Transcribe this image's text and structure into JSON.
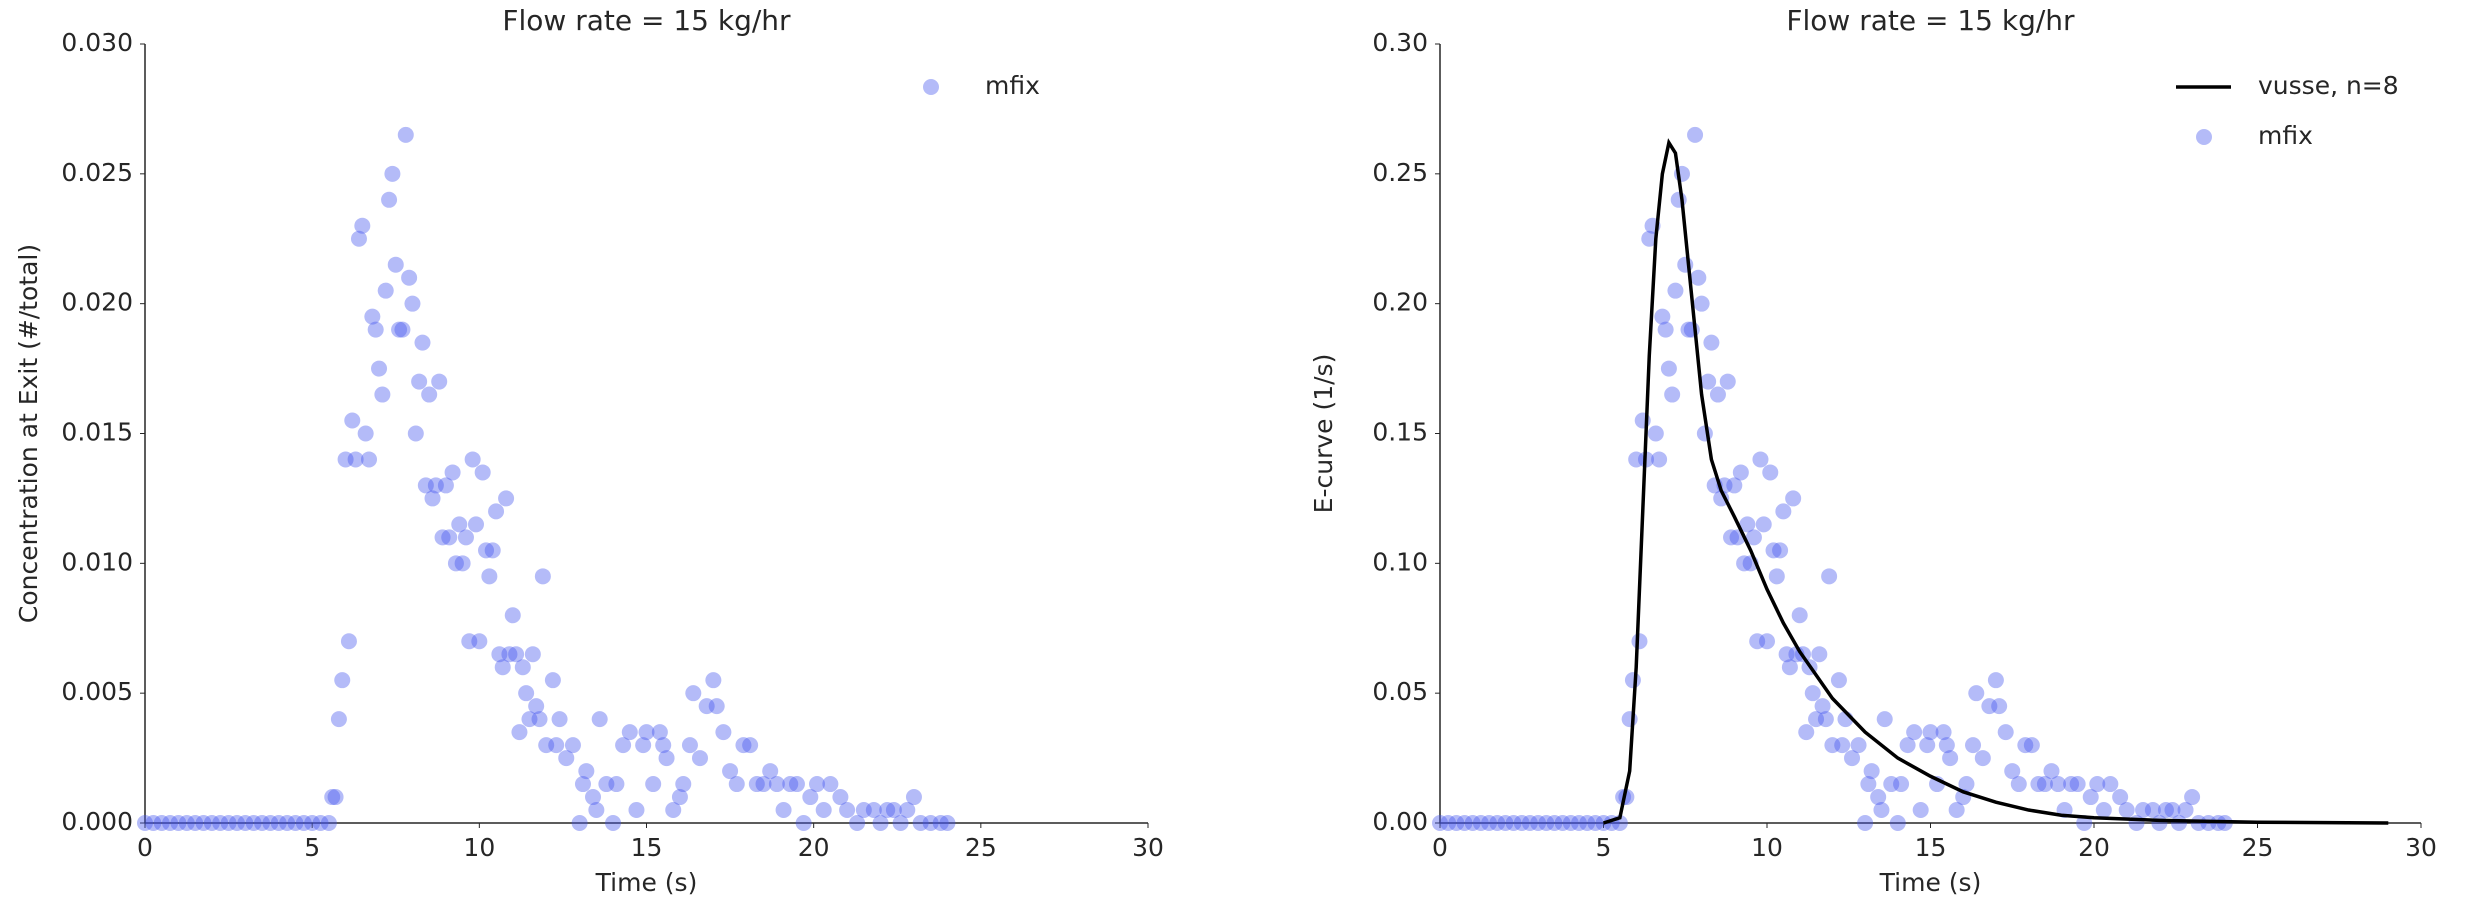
{
  "chart_data": [
    {
      "type": "scatter",
      "title": "Flow rate = 15 kg/hr",
      "x_label": "Time (s)",
      "y_label": "Concentration at Exit (#/total)",
      "xlim": [
        0,
        30
      ],
      "xticks": [
        0,
        5,
        10,
        15,
        20,
        25,
        30
      ],
      "ylim": [
        0,
        0.03
      ],
      "yticks": [
        {
          "value": 0,
          "label": "0.000"
        },
        {
          "value": 0.005,
          "label": "0.005"
        },
        {
          "value": 0.01,
          "label": "0.010"
        },
        {
          "value": 0.015,
          "label": "0.015"
        },
        {
          "value": 0.02,
          "label": "0.020"
        },
        {
          "value": 0.025,
          "label": "0.025"
        },
        {
          "value": 0.03,
          "label": "0.030"
        }
      ],
      "legend": "upper right",
      "series": [
        {
          "name": "mfix",
          "type": "scatter",
          "color": "#4455ee",
          "x": [
            0,
            0.25,
            0.5,
            0.75,
            1,
            1.25,
            1.5,
            1.75,
            2,
            2.25,
            2.5,
            2.75,
            3,
            3.25,
            3.5,
            3.75,
            4,
            4.25,
            4.5,
            4.75,
            5,
            5.25,
            5.5,
            5.6,
            5.7,
            5.8,
            5.9,
            6.0,
            6.1,
            6.2,
            6.3,
            6.4,
            6.5,
            6.6,
            6.7,
            6.8,
            6.9,
            7.0,
            7.1,
            7.2,
            7.3,
            7.4,
            7.5,
            7.6,
            7.7,
            7.8,
            7.9,
            8.0,
            8.1,
            8.2,
            8.3,
            8.4,
            8.5,
            8.6,
            8.7,
            8.8,
            8.9,
            9.0,
            9.1,
            9.2,
            9.3,
            9.4,
            9.5,
            9.6,
            9.7,
            9.8,
            9.9,
            10.0,
            10.1,
            10.2,
            10.3,
            10.4,
            10.5,
            10.6,
            10.7,
            10.8,
            10.9,
            11.0,
            11.1,
            11.2,
            11.3,
            11.4,
            11.5,
            11.6,
            11.7,
            11.8,
            11.9,
            12.0,
            12.2,
            12.3,
            12.4,
            12.6,
            12.8,
            13.0,
            13.1,
            13.2,
            13.4,
            13.5,
            13.6,
            13.8,
            14.0,
            14.1,
            14.3,
            14.5,
            14.7,
            14.9,
            15.0,
            15.2,
            15.4,
            15.5,
            15.6,
            15.8,
            16.0,
            16.1,
            16.3,
            16.4,
            16.6,
            16.8,
            17.0,
            17.1,
            17.3,
            17.5,
            17.7,
            17.9,
            18.1,
            18.3,
            18.5,
            18.7,
            18.9,
            19.1,
            19.3,
            19.5,
            19.7,
            19.9,
            20.1,
            20.3,
            20.5,
            20.8,
            21.0,
            21.3,
            21.5,
            21.8,
            22.0,
            22.2,
            22.4,
            22.6,
            22.8,
            23.0,
            23.2,
            23.5,
            23.8,
            24.0
          ],
          "values": [
            0,
            0,
            0,
            0,
            0,
            0,
            0,
            0,
            0,
            0,
            0,
            0,
            0,
            0,
            0,
            0,
            0,
            0,
            0,
            0,
            0,
            0,
            0,
            0.001,
            0.001,
            0.004,
            0.0055,
            0.014,
            0.007,
            0.0155,
            0.014,
            0.0225,
            0.023,
            0.015,
            0.014,
            0.0195,
            0.019,
            0.0175,
            0.0165,
            0.0205,
            0.024,
            0.025,
            0.0215,
            0.019,
            0.019,
            0.0265,
            0.021,
            0.02,
            0.015,
            0.017,
            0.0185,
            0.013,
            0.0165,
            0.0125,
            0.013,
            0.017,
            0.011,
            0.013,
            0.011,
            0.0135,
            0.01,
            0.0115,
            0.01,
            0.011,
            0.007,
            0.014,
            0.0115,
            0.007,
            0.0135,
            0.0105,
            0.0095,
            0.0105,
            0.012,
            0.0065,
            0.006,
            0.0125,
            0.0065,
            0.008,
            0.0065,
            0.0035,
            0.006,
            0.005,
            0.004,
            0.0065,
            0.0045,
            0.004,
            0.0095,
            0.003,
            0.0055,
            0.003,
            0.004,
            0.0025,
            0.003,
            0,
            0.0015,
            0.002,
            0.001,
            0.0005,
            0.004,
            0.0015,
            0,
            0.0015,
            0.003,
            0.0035,
            0.0005,
            0.003,
            0.0035,
            0.0015,
            0.0035,
            0.003,
            0.0025,
            0.0005,
            0.001,
            0.0015,
            0.003,
            0.005,
            0.0025,
            0.0045,
            0.0055,
            0.0045,
            0.0035,
            0.002,
            0.0015,
            0.003,
            0.003,
            0.0015,
            0.0015,
            0.002,
            0.0015,
            0.0005,
            0.0015,
            0.0015,
            0,
            0.001,
            0.0015,
            0.0005,
            0.0015,
            0.001,
            0.0005,
            0,
            0.0005,
            0.0005,
            0,
            0.0005,
            0.0005,
            0,
            0.0005,
            0.001,
            0,
            0,
            0,
            0
          ]
        }
      ]
    },
    {
      "type": "scatter",
      "title": "Flow rate = 15 kg/hr",
      "x_label": "Time (s)",
      "y_label": "E-curve (1/s)",
      "xlim": [
        0,
        30
      ],
      "xticks": [
        0,
        5,
        10,
        15,
        20,
        25,
        30
      ],
      "ylim": [
        0,
        0.3
      ],
      "yticks": [
        {
          "value": 0,
          "label": "0.00"
        },
        {
          "value": 0.05,
          "label": "0.05"
        },
        {
          "value": 0.1,
          "label": "0.10"
        },
        {
          "value": 0.15,
          "label": "0.15"
        },
        {
          "value": 0.2,
          "label": "0.20"
        },
        {
          "value": 0.25,
          "label": "0.25"
        },
        {
          "value": 0.3,
          "label": "0.30"
        }
      ],
      "legend": "upper right",
      "series": [
        {
          "name": "vusse, n=8",
          "type": "line",
          "color": "#000000",
          "x": [
            5.0,
            5.5,
            5.8,
            6.0,
            6.2,
            6.4,
            6.6,
            6.8,
            7.0,
            7.2,
            7.4,
            7.6,
            7.8,
            8.0,
            8.3,
            8.6,
            9.0,
            9.5,
            10,
            10.5,
            11,
            12,
            13,
            14,
            15,
            16,
            17,
            18,
            19,
            20,
            22,
            25,
            29
          ],
          "values": [
            0,
            0.002,
            0.02,
            0.06,
            0.12,
            0.18,
            0.225,
            0.25,
            0.262,
            0.258,
            0.24,
            0.215,
            0.19,
            0.165,
            0.14,
            0.128,
            0.118,
            0.105,
            0.09,
            0.077,
            0.066,
            0.048,
            0.035,
            0.025,
            0.018,
            0.012,
            0.008,
            0.005,
            0.003,
            0.002,
            0.001,
            0.0003,
            0
          ]
        },
        {
          "name": "mfix",
          "type": "scatter",
          "color": "#4455ee",
          "x": [
            0,
            0.25,
            0.5,
            0.75,
            1,
            1.25,
            1.5,
            1.75,
            2,
            2.25,
            2.5,
            2.75,
            3,
            3.25,
            3.5,
            3.75,
            4,
            4.25,
            4.5,
            4.75,
            5,
            5.25,
            5.5,
            5.6,
            5.7,
            5.8,
            5.9,
            6.0,
            6.1,
            6.2,
            6.3,
            6.4,
            6.5,
            6.6,
            6.7,
            6.8,
            6.9,
            7.0,
            7.1,
            7.2,
            7.3,
            7.4,
            7.5,
            7.6,
            7.7,
            7.8,
            7.9,
            8.0,
            8.1,
            8.2,
            8.3,
            8.4,
            8.5,
            8.6,
            8.7,
            8.8,
            8.9,
            9.0,
            9.1,
            9.2,
            9.3,
            9.4,
            9.5,
            9.6,
            9.7,
            9.8,
            9.9,
            10.0,
            10.1,
            10.2,
            10.3,
            10.4,
            10.5,
            10.6,
            10.7,
            10.8,
            10.9,
            11.0,
            11.1,
            11.2,
            11.3,
            11.4,
            11.5,
            11.6,
            11.7,
            11.8,
            11.9,
            12.0,
            12.2,
            12.3,
            12.4,
            12.6,
            12.8,
            13.0,
            13.1,
            13.2,
            13.4,
            13.5,
            13.6,
            13.8,
            14.0,
            14.1,
            14.3,
            14.5,
            14.7,
            14.9,
            15.0,
            15.2,
            15.4,
            15.5,
            15.6,
            15.8,
            16.0,
            16.1,
            16.3,
            16.4,
            16.6,
            16.8,
            17.0,
            17.1,
            17.3,
            17.5,
            17.7,
            17.9,
            18.1,
            18.3,
            18.5,
            18.7,
            18.9,
            19.1,
            19.3,
            19.5,
            19.7,
            19.9,
            20.1,
            20.3,
            20.5,
            20.8,
            21.0,
            21.3,
            21.5,
            21.8,
            22.0,
            22.2,
            22.4,
            22.6,
            22.8,
            23.0,
            23.2,
            23.5,
            23.8,
            24.0
          ],
          "values": [
            0,
            0,
            0,
            0,
            0,
            0,
            0,
            0,
            0,
            0,
            0,
            0,
            0,
            0,
            0,
            0,
            0,
            0,
            0,
            0,
            0,
            0,
            0,
            0.01,
            0.01,
            0.04,
            0.055,
            0.14,
            0.07,
            0.155,
            0.14,
            0.225,
            0.23,
            0.15,
            0.14,
            0.195,
            0.19,
            0.175,
            0.165,
            0.205,
            0.24,
            0.25,
            0.215,
            0.19,
            0.19,
            0.265,
            0.21,
            0.2,
            0.15,
            0.17,
            0.185,
            0.13,
            0.165,
            0.125,
            0.13,
            0.17,
            0.11,
            0.13,
            0.11,
            0.135,
            0.1,
            0.115,
            0.1,
            0.11,
            0.07,
            0.14,
            0.115,
            0.07,
            0.135,
            0.105,
            0.095,
            0.105,
            0.12,
            0.065,
            0.06,
            0.125,
            0.065,
            0.08,
            0.065,
            0.035,
            0.06,
            0.05,
            0.04,
            0.065,
            0.045,
            0.04,
            0.095,
            0.03,
            0.055,
            0.03,
            0.04,
            0.025,
            0.03,
            0,
            0.015,
            0.02,
            0.01,
            0.005,
            0.04,
            0.015,
            0,
            0.015,
            0.03,
            0.035,
            0.005,
            0.03,
            0.035,
            0.015,
            0.035,
            0.03,
            0.025,
            0.005,
            0.01,
            0.015,
            0.03,
            0.05,
            0.025,
            0.045,
            0.055,
            0.045,
            0.035,
            0.02,
            0.015,
            0.03,
            0.03,
            0.015,
            0.015,
            0.02,
            0.015,
            0.005,
            0.015,
            0.015,
            0,
            0.01,
            0.015,
            0.005,
            0.015,
            0.01,
            0.005,
            0,
            0.005,
            0.005,
            0,
            0.005,
            0.005,
            0,
            0.005,
            0.01,
            0,
            0,
            0,
            0
          ]
        }
      ]
    }
  ]
}
